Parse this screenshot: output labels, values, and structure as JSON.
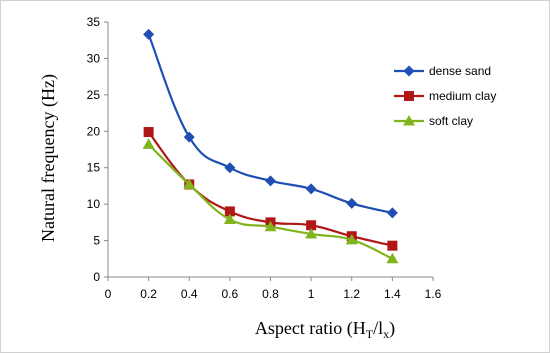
{
  "chart_data": {
    "type": "line",
    "xlabel": "Aspect ratio (H",
    "xlabel_sub1": "T",
    "xlabel_mid": "/l",
    "xlabel_sub2": "x",
    "xlabel_end": ")",
    "ylabel": "Natural frequency (Hz)",
    "xlim": [
      0,
      1.6
    ],
    "ylim": [
      0,
      35
    ],
    "xticks": [
      "0",
      "0.2",
      "0.4",
      "0.6",
      "0.8",
      "1",
      "1.2",
      "1.4",
      "1.6"
    ],
    "yticks": [
      "0",
      "5",
      "10",
      "15",
      "20",
      "25",
      "30",
      "35"
    ],
    "x": [
      0.2,
      0.4,
      0.6,
      0.8,
      1.0,
      1.2,
      1.4
    ],
    "grid": false,
    "legend_position": "top-right",
    "series": [
      {
        "name": "dense sand",
        "color": "#1f4fb4",
        "marker": "diamond",
        "values": [
          33.3,
          19.2,
          15.0,
          13.2,
          12.1,
          10.1,
          8.8
        ]
      },
      {
        "name": "medium clay",
        "color": "#b01818",
        "marker": "square",
        "values": [
          19.9,
          12.7,
          9.0,
          7.5,
          7.1,
          5.6,
          4.3
        ]
      },
      {
        "name": "soft clay",
        "color": "#82b41e",
        "marker": "triangle",
        "values": [
          18.2,
          12.7,
          7.9,
          6.9,
          5.9,
          5.1,
          2.5
        ]
      }
    ]
  }
}
